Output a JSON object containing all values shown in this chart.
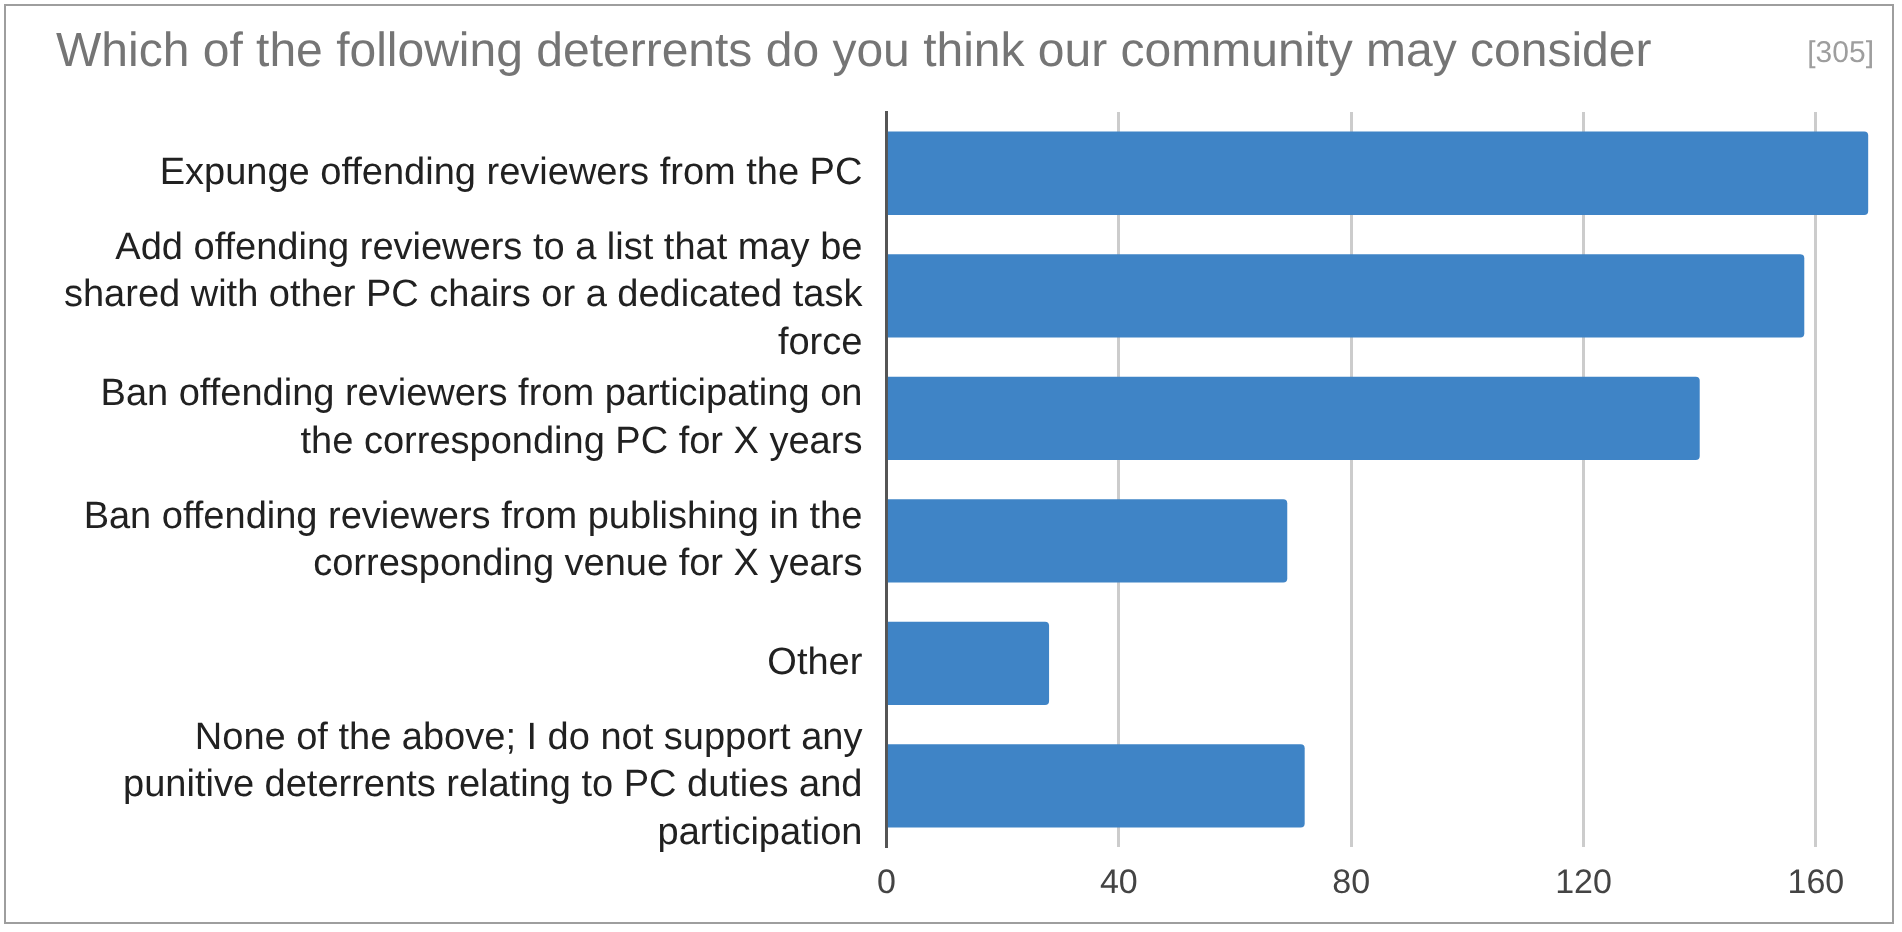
{
  "chart_data": {
    "type": "bar",
    "orientation": "horizontal",
    "title": "Which of the following deterrents do you think our community may consider",
    "annotations": [
      "[305]"
    ],
    "categories": [
      "Expunge offending reviewers from the PC",
      "Add offending reviewers to a list that may be shared with other PC chairs or a dedicated task force",
      "Ban offending reviewers from participating on the corresponding PC for X years",
      "Ban offending reviewers from publishing in the corresponding venue for X years",
      "Other",
      "None of the above; I do not support any punitive deterrents relating to PC duties and participation"
    ],
    "values": [
      169,
      158,
      140,
      69,
      28,
      72
    ],
    "color": "#3f84c6",
    "xlim": [
      0,
      170
    ],
    "xticks": [
      0,
      40,
      80,
      120,
      160
    ],
    "grid": "x"
  }
}
